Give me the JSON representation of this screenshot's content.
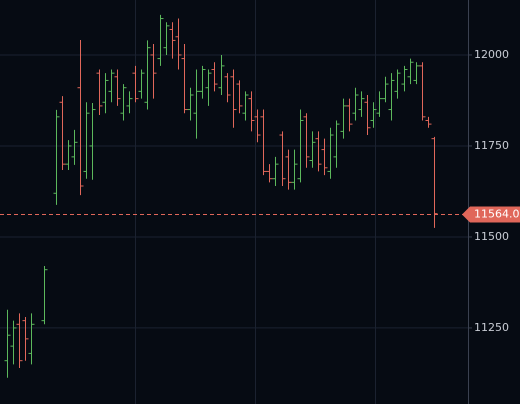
{
  "chart_data": {
    "type": "ohlc",
    "categories": [
      null,
      null,
      null,
      null,
      null,
      null,
      null,
      null,
      null,
      null,
      null,
      null,
      null,
      null,
      null,
      null,
      null,
      null,
      null,
      null,
      null,
      null,
      null,
      null,
      null,
      null,
      null,
      null,
      null,
      null,
      null,
      null,
      null,
      null,
      null,
      null,
      null,
      null,
      null,
      null,
      null,
      null,
      null,
      null,
      null,
      null,
      null,
      null,
      null,
      null,
      null,
      null,
      null,
      null,
      null,
      null,
      null,
      null,
      null,
      null,
      null,
      null,
      null,
      null,
      null,
      null,
      null,
      null,
      null,
      null,
      null
    ],
    "open": [
      11160,
      11200,
      11260,
      11270,
      11180,
      null,
      11270,
      null,
      11620,
      11870,
      11700,
      11720,
      11910,
      11680,
      11750,
      11950,
      11870,
      11900,
      11940,
      11840,
      11860,
      11950,
      11900,
      11870,
      12000,
      11990,
      12020,
      12070,
      12050,
      11990,
      11850,
      11840,
      11900,
      11910,
      11960,
      11910,
      11940,
      11940,
      11920,
      11840,
      11880,
      11830,
      11830,
      11680,
      11660,
      11780,
      11720,
      11650,
      11660,
      11830,
      11710,
      11770,
      11740,
      11680,
      11720,
      11790,
      11860,
      11840,
      11850,
      11870,
      11820,
      11840,
      11880,
      11850,
      11900,
      11920,
      11940,
      11930,
      11970,
      11820,
      11770
    ],
    "high": [
      11300,
      11270,
      11290,
      11280,
      11290,
      null,
      11420,
      null,
      11849,
      11887,
      11766,
      11794,
      12041,
      11870,
      11868,
      11960,
      11950,
      11960,
      11960,
      11920,
      11900,
      11970,
      11960,
      12040,
      12030,
      12110,
      12090,
      12090,
      12100,
      12030,
      11910,
      11960,
      11970,
      11960,
      11980,
      12000,
      11950,
      11960,
      11930,
      11900,
      11900,
      11850,
      11850,
      11700,
      11720,
      11790,
      11740,
      11740,
      11850,
      11840,
      11790,
      11790,
      11770,
      11800,
      11820,
      11880,
      11880,
      11910,
      11900,
      11890,
      11870,
      11900,
      11940,
      11950,
      11960,
      11970,
      11990,
      11980,
      11980,
      11830,
      11775
    ],
    "low": [
      11113,
      11150,
      11140,
      11160,
      11150,
      null,
      11260,
      null,
      11588,
      11684,
      11684,
      11698,
      11615,
      11660,
      11657,
      11835,
      11840,
      11870,
      11860,
      11820,
      11840,
      11870,
      11880,
      11850,
      11880,
      11970,
      12000,
      11990,
      11960,
      11840,
      11820,
      11770,
      11880,
      11860,
      11900,
      11890,
      11870,
      11800,
      11840,
      11820,
      11790,
      11760,
      11670,
      11650,
      11640,
      11640,
      11630,
      11630,
      11650,
      11690,
      11690,
      11680,
      11670,
      11660,
      11690,
      11770,
      11790,
      11820,
      11830,
      11780,
      11800,
      11830,
      11870,
      11820,
      11880,
      11900,
      11920,
      11920,
      11820,
      11800,
      11525
    ],
    "close": [
      11230,
      11250,
      11160,
      11220,
      11260,
      null,
      11410,
      null,
      11830,
      11700,
      11750,
      11760,
      11640,
      11840,
      11850,
      11860,
      11930,
      11950,
      11880,
      11910,
      11880,
      11880,
      11950,
      12020,
      11950,
      12100,
      12080,
      12040,
      12000,
      11850,
      11890,
      11900,
      11960,
      11950,
      11920,
      11970,
      11890,
      11850,
      11860,
      11890,
      11820,
      11780,
      11680,
      11660,
      11700,
      11660,
      11650,
      11700,
      11820,
      11720,
      11760,
      11700,
      11690,
      11780,
      11810,
      11860,
      11810,
      11890,
      11880,
      11800,
      11850,
      11880,
      11920,
      11930,
      11950,
      11960,
      11980,
      11970,
      11830,
      11810,
      11564
    ],
    "up_color": "#5cb85c",
    "down_color": "#e0675a",
    "ylim": [
      11041,
      12151
    ],
    "yticks": [
      11250,
      11500,
      11750,
      12000
    ],
    "grid": true,
    "last_price": {
      "value": 11564,
      "label": "11564.00"
    }
  }
}
